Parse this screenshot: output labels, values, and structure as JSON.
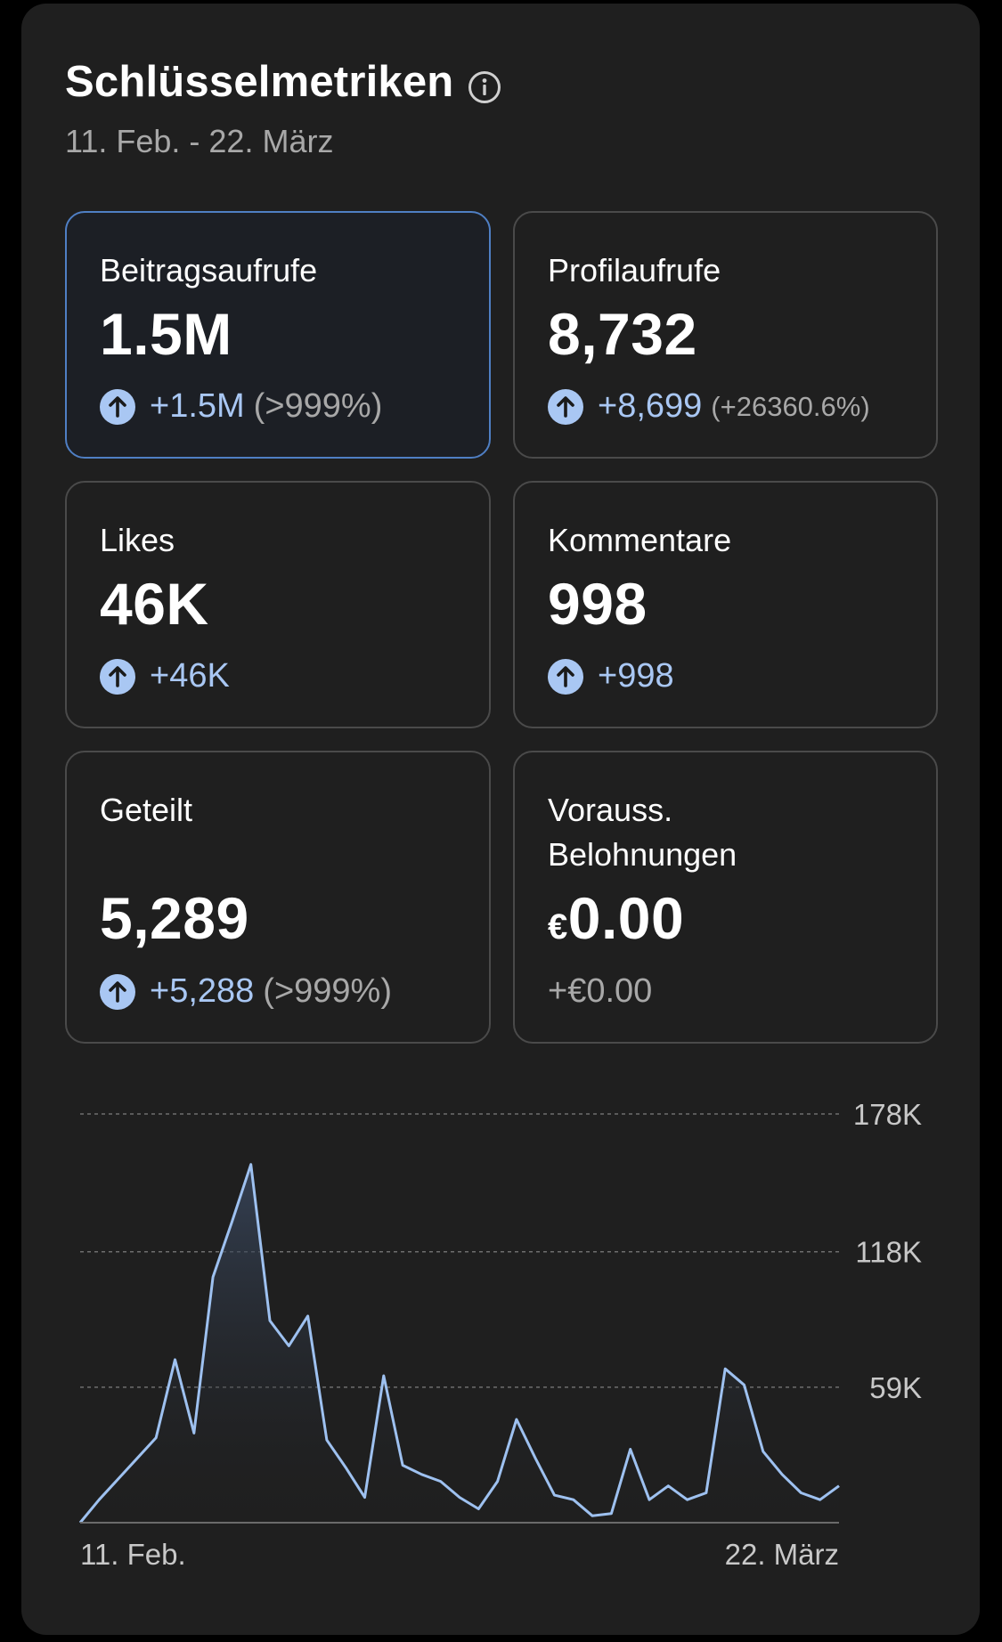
{
  "header": {
    "title": "Schlüsselmetriken",
    "range": "11. Feb. - 22. März"
  },
  "metrics": [
    {
      "label": "Beitragsaufrufe",
      "value": "1.5M",
      "change": "+1.5M",
      "pct": "(>999%)",
      "selected": true,
      "trend": "up"
    },
    {
      "label": "Profilaufrufe",
      "value": "8,732",
      "change": "+8,699",
      "pct": "(+26360.6%)",
      "selected": false,
      "trend": "up"
    },
    {
      "label": "Likes",
      "value": "46K",
      "change": "+46K",
      "pct": "",
      "selected": false,
      "trend": "up"
    },
    {
      "label": "Kommentare",
      "value": "998",
      "change": "+998",
      "pct": "",
      "selected": false,
      "trend": "up"
    },
    {
      "label": "Geteilt",
      "value": "5,289",
      "change": "+5,288",
      "pct": "(>999%)",
      "selected": false,
      "trend": "up"
    },
    {
      "label_line1": "Vorauss.",
      "label_line2": "Belohnungen",
      "currency": "€",
      "value": "0.00",
      "change": "+€0.00",
      "pct": "",
      "selected": false,
      "trend": "none"
    }
  ],
  "colors": {
    "accent": "#a9c7f3",
    "selected_border": "#4f7fc4",
    "line": "#9ec1f0",
    "panel": "#1f1f1f"
  },
  "chart_data": {
    "type": "area",
    "title": "",
    "xlabel": "",
    "ylabel": "",
    "x_tick_labels": [
      "11. Feb.",
      "22. März"
    ],
    "y_tick_labels": [
      "178K",
      "118K",
      "59K"
    ],
    "y_ticks": [
      178000,
      118000,
      59000
    ],
    "ylim": [
      0,
      178000
    ],
    "grid": true,
    "series": [
      {
        "values": [
          0,
          10000,
          19000,
          28000,
          37000,
          71000,
          39000,
          107000,
          131000,
          156000,
          88000,
          77000,
          90000,
          36000,
          24000,
          11000,
          64000,
          25000,
          21000,
          18000,
          11000,
          6000,
          18000,
          45000,
          28000,
          12000,
          10000,
          3000,
          4000,
          32000,
          10000,
          16000,
          10000,
          13000,
          67000,
          60000,
          31000,
          21000,
          13000,
          10000,
          16000
        ]
      }
    ]
  }
}
